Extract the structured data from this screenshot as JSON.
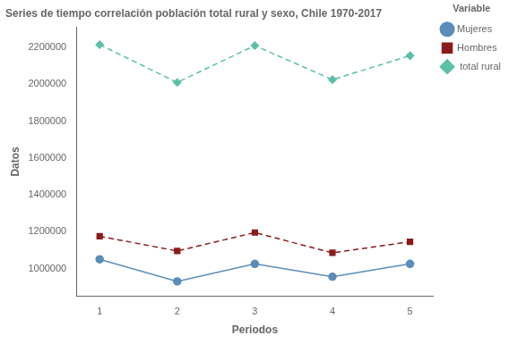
{
  "chart_data": {
    "type": "line",
    "title": "Series de tiempo correlación población total rural y sexo, Chile 1970-2017",
    "xlabel": "Periodos",
    "ylabel": "Datos",
    "legend_title": "Variable",
    "x": [
      1,
      2,
      3,
      4,
      5
    ],
    "series": [
      {
        "name": "Mujeres",
        "color": "#5b8db8",
        "marker": "circle",
        "line_style": "solid",
        "values": [
          1050000,
          930000,
          1025000,
          955000,
          1025000
        ]
      },
      {
        "name": "Hombres",
        "color": "#8b1a1a",
        "marker": "square",
        "line_style": "dashed",
        "values": [
          1175000,
          1095000,
          1195000,
          1085000,
          1145000
        ]
      },
      {
        "name": " total rural",
        "color": "#5bbfaa",
        "marker": "diamond",
        "line_style": "dashed",
        "values": [
          2215000,
          2010000,
          2210000,
          2025000,
          2155000
        ]
      }
    ],
    "xlim": [
      0.7,
      5.3
    ],
    "xticks": [
      1,
      2,
      3,
      4,
      5
    ],
    "ylim": [
      850000,
      2310000
    ],
    "yticks": [
      1000000,
      1200000,
      1400000,
      1600000,
      1800000,
      2000000,
      2200000
    ],
    "grid": false,
    "legend": "right"
  }
}
